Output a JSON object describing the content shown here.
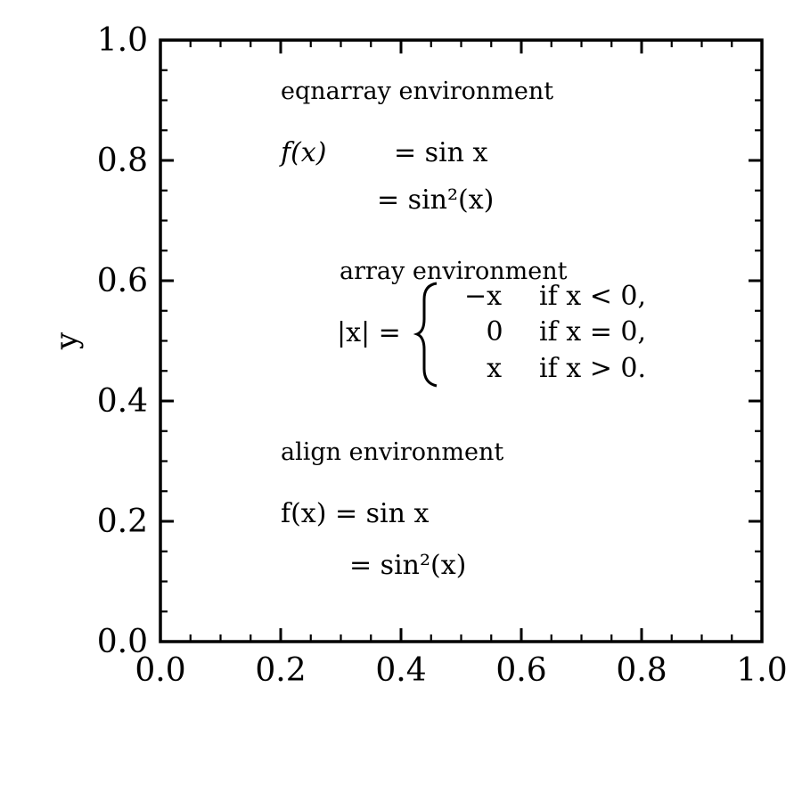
{
  "chart_data": {
    "type": "scatter",
    "title": "",
    "xlabel": "",
    "ylabel": "y",
    "xlim": [
      0.0,
      1.0
    ],
    "ylim": [
      0.0,
      1.0
    ],
    "x_ticks": [
      "0.0",
      "0.2",
      "0.4",
      "0.6",
      "0.8",
      "1.0"
    ],
    "y_ticks": [
      "0.0",
      "0.2",
      "0.4",
      "0.6",
      "0.8",
      "1.0"
    ],
    "grid": false,
    "series": [],
    "annotations": {
      "eqnarray": {
        "heading": "eqnarray environment",
        "line1": {
          "lhs": "f(x)",
          "rhs": "= sin x"
        },
        "line2": {
          "rhs": "= sin²(x)"
        }
      },
      "array": {
        "heading": "array environment",
        "lhs": "|x| =",
        "cases": [
          {
            "value": "−x",
            "condition": "if x < 0,"
          },
          {
            "value": "0",
            "condition": "if x = 0,"
          },
          {
            "value": "x",
            "condition": "if x > 0."
          }
        ]
      },
      "align": {
        "heading": "align environment",
        "line1": "f(x) = sin x",
        "line2": "= sin²(x)"
      }
    }
  }
}
